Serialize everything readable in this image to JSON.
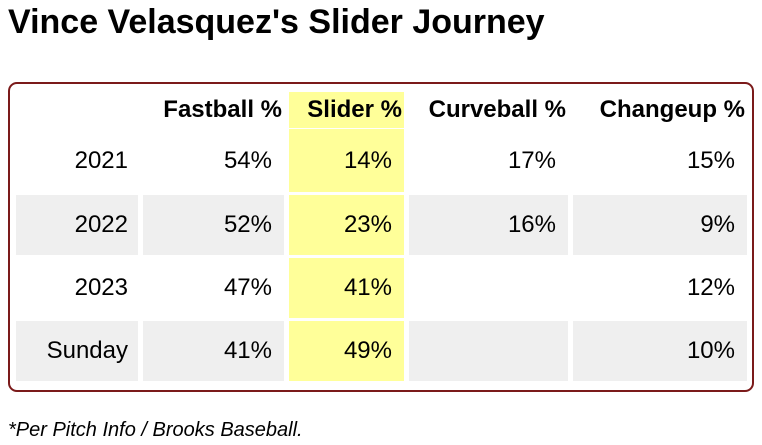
{
  "title": "Vince Velasquez's Slider Journey",
  "table": {
    "columns": [
      "Fastball %",
      "Slider %",
      "Curveball %",
      "Changeup %"
    ],
    "rows": [
      {
        "label": "2021",
        "cells": [
          "54%",
          "14%",
          "17%",
          "15%"
        ]
      },
      {
        "label": "2022",
        "cells": [
          "52%",
          "23%",
          "16%",
          "9%"
        ]
      },
      {
        "label": "2023",
        "cells": [
          "47%",
          "41%",
          null,
          "12%"
        ]
      },
      {
        "label": "Sunday",
        "cells": [
          "41%",
          "49%",
          null,
          "10%"
        ]
      }
    ]
  },
  "footnote": "*Per Pitch Info / Brooks Baseball."
}
